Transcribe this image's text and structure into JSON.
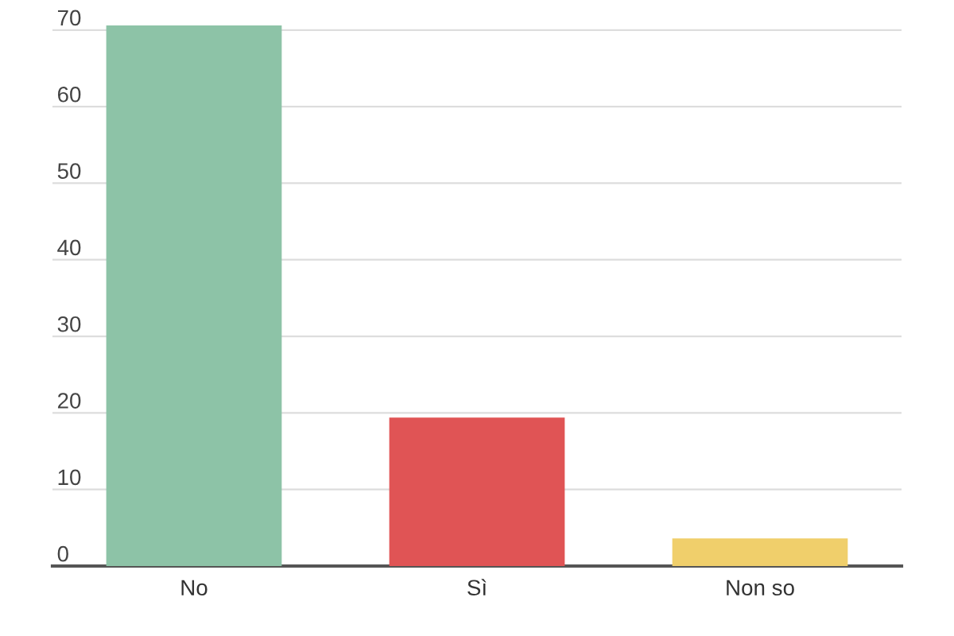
{
  "chart_data": {
    "type": "bar",
    "categories": [
      "No",
      "Sì",
      "Non so"
    ],
    "values": [
      70.6,
      19.4,
      3.6
    ],
    "colors": [
      "#8dc3a7",
      "#e05455",
      "#f0cf6b"
    ],
    "ylim": [
      0,
      70.6
    ],
    "yticks": [
      0,
      10,
      20,
      30,
      40,
      50,
      60,
      70
    ],
    "grid": "y"
  }
}
